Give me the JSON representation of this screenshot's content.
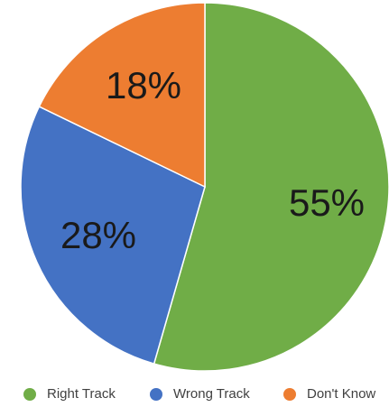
{
  "chart_data": {
    "type": "pie",
    "title": "",
    "start": "12 o'clock, clockwise",
    "slices": [
      {
        "label": "Right Track",
        "value": 55,
        "display": "55%",
        "color": "#70AD47"
      },
      {
        "label": "Wrong Track",
        "value": 28,
        "display": "28%",
        "color": "#4472C4"
      },
      {
        "label": "Don't Know",
        "value": 18,
        "display": "18%",
        "color": "#ED7D31"
      }
    ],
    "legend": {
      "position": "bottom",
      "entries": [
        "Right Track",
        "Wrong Track",
        "Don't Know"
      ]
    }
  }
}
